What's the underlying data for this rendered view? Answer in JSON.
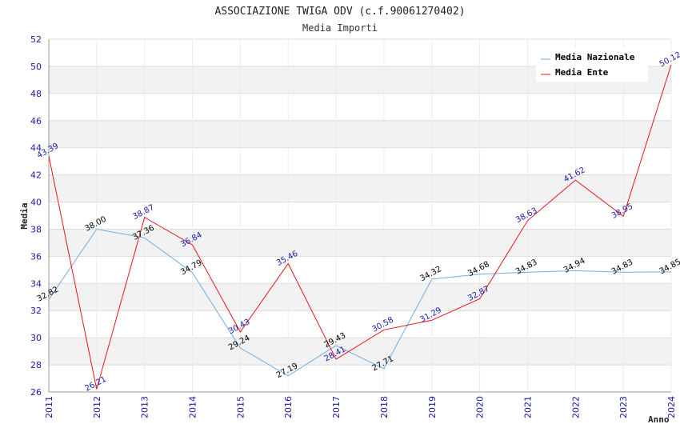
{
  "chart_data": {
    "type": "line",
    "title": "ASSOCIAZIONE TWIGA ODV (c.f.90061270402)",
    "subtitle": "Media Importi",
    "xlabel": "Anno",
    "ylabel": "Media",
    "ylim": [
      26,
      52
    ],
    "yticks": [
      "26",
      "28",
      "30",
      "32",
      "34",
      "36",
      "38",
      "40",
      "42",
      "44",
      "46",
      "48",
      "50",
      "52"
    ],
    "categories": [
      "2011",
      "2012",
      "2013",
      "2014",
      "2015",
      "2016",
      "2017",
      "2018",
      "2019",
      "2020",
      "2021",
      "2022",
      "2023",
      "2024"
    ],
    "grid": true,
    "legend_position": "top-right",
    "series": [
      {
        "name": "Media Nazionale",
        "color": "#6aaee6",
        "label_color": "#000000",
        "values": [
          32.82,
          38.0,
          37.36,
          34.79,
          29.24,
          27.19,
          29.43,
          27.71,
          34.32,
          34.68,
          34.83,
          34.94,
          34.83,
          34.85
        ],
        "labels": [
          "32.82",
          "38.00",
          "37.36",
          "34.79",
          "29.24",
          "27.19",
          "29.43",
          "27.71",
          "34.32",
          "34.68",
          "34.83",
          "34.94",
          "34.83",
          "34.85"
        ]
      },
      {
        "name": "Media Ente",
        "color": "#e8141c",
        "label_color": "#1a1aa8",
        "values": [
          43.39,
          26.21,
          38.87,
          36.84,
          30.43,
          35.46,
          28.41,
          30.58,
          31.29,
          32.87,
          38.63,
          41.62,
          38.95,
          50.12
        ],
        "labels": [
          "43.39",
          "26.21",
          "38.87",
          "36.84",
          "30.43",
          "35.46",
          "28.41",
          "30.58",
          "31.29",
          "32.87",
          "38.63",
          "41.62",
          "38.95",
          "50.12"
        ]
      }
    ]
  }
}
